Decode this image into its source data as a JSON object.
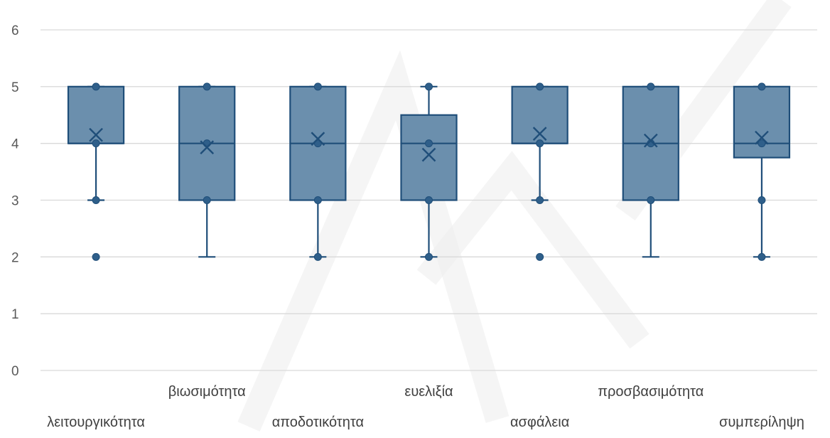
{
  "chart_data": {
    "type": "box",
    "title": "",
    "xlabel": "",
    "ylabel": "",
    "ylim": [
      0,
      6
    ],
    "yticks": [
      0,
      1,
      2,
      3,
      4,
      5,
      6
    ],
    "grid": true,
    "legend": "none",
    "colors": {
      "box_fill": "#6b8fad",
      "box_stroke": "#1f4e79",
      "grid": "#d9d9d9"
    },
    "series": [
      {
        "category": "λειτουργικότητα",
        "min": 3,
        "q1": 4,
        "median": 4,
        "q3": 5,
        "max": 5,
        "mean": 4.15,
        "points": [
          2,
          3,
          4,
          5
        ]
      },
      {
        "category": "βιωσιμότητα",
        "min": 2,
        "q1": 3,
        "median": 4,
        "q3": 5,
        "max": 5,
        "mean": 3.93,
        "points": [
          3,
          4,
          5
        ]
      },
      {
        "category": "αποδοτικότητα",
        "min": 2,
        "q1": 3,
        "median": 4,
        "q3": 5,
        "max": 5,
        "mean": 4.08,
        "points": [
          2,
          3,
          4,
          5
        ]
      },
      {
        "category": "ευελιξία",
        "min": 2,
        "q1": 3,
        "median": 4,
        "q3": 4.5,
        "max": 5,
        "mean": 3.8,
        "points": [
          2,
          3,
          4,
          5
        ]
      },
      {
        "category": "ασφάλεια",
        "min": 3,
        "q1": 4,
        "median": 4,
        "q3": 5,
        "max": 5,
        "mean": 4.17,
        "points": [
          2,
          3,
          4,
          5
        ]
      },
      {
        "category": "προσβασιμότητα",
        "min": 2,
        "q1": 3,
        "median": 4,
        "q3": 5,
        "max": 5,
        "mean": 4.05,
        "points": [
          3,
          4,
          5
        ]
      },
      {
        "category": "συμπερίληψη",
        "min": 2,
        "q1": 3.75,
        "median": 4,
        "q3": 5,
        "max": 5,
        "mean": 4.1,
        "points": [
          2,
          3,
          4,
          5
        ]
      }
    ]
  }
}
